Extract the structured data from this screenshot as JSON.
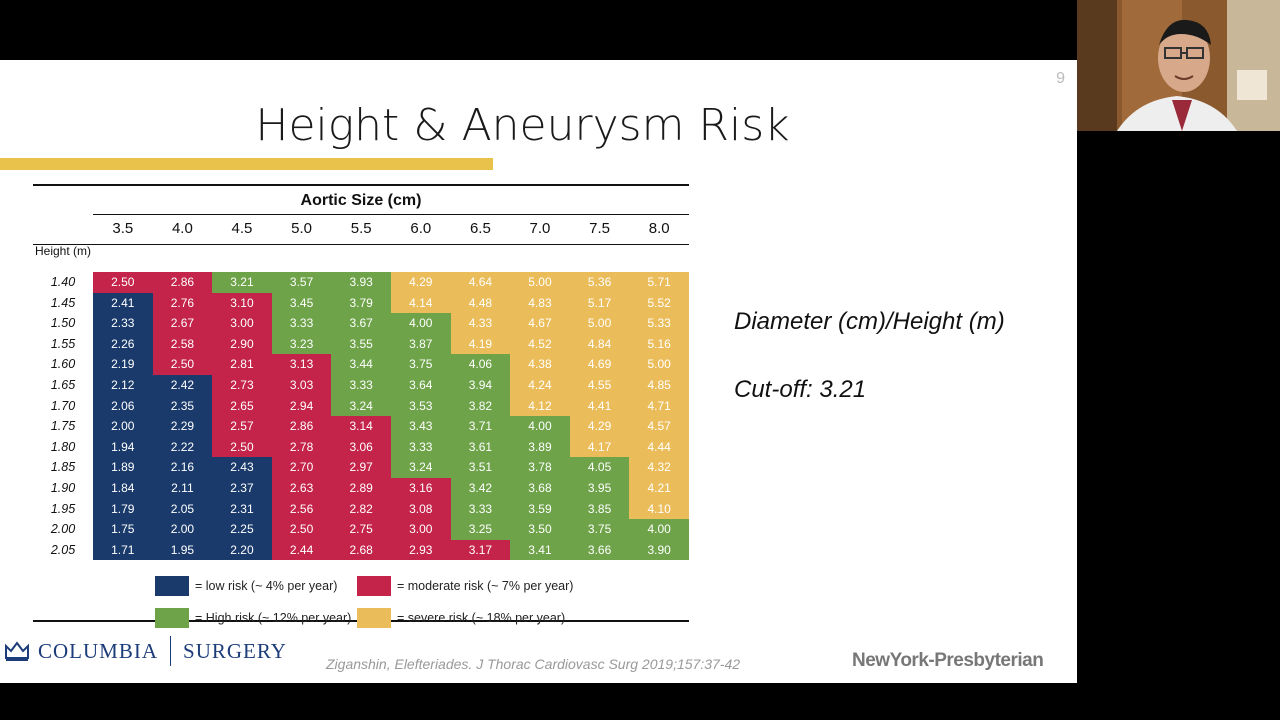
{
  "slide": {
    "number": "9",
    "title": "Height & Aneurysm Risk"
  },
  "table": {
    "header": "Aortic Size (cm)",
    "height_header": "Height (m)",
    "columns": [
      "3.5",
      "4.0",
      "4.5",
      "5.0",
      "5.5",
      "6.0",
      "6.5",
      "7.0",
      "7.5",
      "8.0"
    ],
    "heights": [
      "1.40",
      "1.45",
      "1.50",
      "1.55",
      "1.60",
      "1.65",
      "1.70",
      "1.75",
      "1.80",
      "1.85",
      "1.90",
      "1.95",
      "2.00",
      "2.05"
    ],
    "values": [
      [
        "2.50",
        "2.86",
        "3.21",
        "3.57",
        "3.93",
        "4.29",
        "4.64",
        "5.00",
        "5.36",
        "5.71"
      ],
      [
        "2.41",
        "2.76",
        "3.10",
        "3.45",
        "3.79",
        "4.14",
        "4.48",
        "4.83",
        "5.17",
        "5.52"
      ],
      [
        "2.33",
        "2.67",
        "3.00",
        "3.33",
        "3.67",
        "4.00",
        "4.33",
        "4.67",
        "5.00",
        "5.33"
      ],
      [
        "2.26",
        "2.58",
        "2.90",
        "3.23",
        "3.55",
        "3.87",
        "4.19",
        "4.52",
        "4.84",
        "5.16"
      ],
      [
        "2.19",
        "2.50",
        "2.81",
        "3.13",
        "3.44",
        "3.75",
        "4.06",
        "4.38",
        "4.69",
        "5.00"
      ],
      [
        "2.12",
        "2.42",
        "2.73",
        "3.03",
        "3.33",
        "3.64",
        "3.94",
        "4.24",
        "4.55",
        "4.85"
      ],
      [
        "2.06",
        "2.35",
        "2.65",
        "2.94",
        "3.24",
        "3.53",
        "3.82",
        "4.12",
        "4.41",
        "4.71"
      ],
      [
        "2.00",
        "2.29",
        "2.57",
        "2.86",
        "3.14",
        "3.43",
        "3.71",
        "4.00",
        "4.29",
        "4.57"
      ],
      [
        "1.94",
        "2.22",
        "2.50",
        "2.78",
        "3.06",
        "3.33",
        "3.61",
        "3.89",
        "4.17",
        "4.44"
      ],
      [
        "1.89",
        "2.16",
        "2.43",
        "2.70",
        "2.97",
        "3.24",
        "3.51",
        "3.78",
        "4.05",
        "4.32"
      ],
      [
        "1.84",
        "2.11",
        "2.37",
        "2.63",
        "2.89",
        "3.16",
        "3.42",
        "3.68",
        "3.95",
        "4.21"
      ],
      [
        "1.79",
        "2.05",
        "2.31",
        "2.56",
        "2.82",
        "3.08",
        "3.33",
        "3.59",
        "3.85",
        "4.10"
      ],
      [
        "1.75",
        "2.00",
        "2.25",
        "2.50",
        "2.75",
        "3.00",
        "3.25",
        "3.50",
        "3.75",
        "4.00"
      ],
      [
        "1.71",
        "1.95",
        "2.20",
        "2.44",
        "2.68",
        "2.93",
        "3.17",
        "3.41",
        "3.66",
        "3.90"
      ]
    ],
    "risk": [
      [
        "M",
        "M",
        "H",
        "H",
        "H",
        "S",
        "S",
        "S",
        "S",
        "S"
      ],
      [
        "L",
        "M",
        "M",
        "H",
        "H",
        "S",
        "S",
        "S",
        "S",
        "S"
      ],
      [
        "L",
        "M",
        "M",
        "H",
        "H",
        "H",
        "S",
        "S",
        "S",
        "S"
      ],
      [
        "L",
        "M",
        "M",
        "H",
        "H",
        "H",
        "S",
        "S",
        "S",
        "S"
      ],
      [
        "L",
        "M",
        "M",
        "M",
        "H",
        "H",
        "H",
        "S",
        "S",
        "S"
      ],
      [
        "L",
        "L",
        "M",
        "M",
        "H",
        "H",
        "H",
        "S",
        "S",
        "S"
      ],
      [
        "L",
        "L",
        "M",
        "M",
        "H",
        "H",
        "H",
        "S",
        "S",
        "S"
      ],
      [
        "L",
        "L",
        "M",
        "M",
        "M",
        "H",
        "H",
        "H",
        "S",
        "S"
      ],
      [
        "L",
        "L",
        "M",
        "M",
        "M",
        "H",
        "H",
        "H",
        "S",
        "S"
      ],
      [
        "L",
        "L",
        "L",
        "M",
        "M",
        "H",
        "H",
        "H",
        "H",
        "S"
      ],
      [
        "L",
        "L",
        "L",
        "M",
        "M",
        "M",
        "H",
        "H",
        "H",
        "S"
      ],
      [
        "L",
        "L",
        "L",
        "M",
        "M",
        "M",
        "H",
        "H",
        "H",
        "S"
      ],
      [
        "L",
        "L",
        "L",
        "M",
        "M",
        "M",
        "H",
        "H",
        "H",
        "H"
      ],
      [
        "L",
        "L",
        "L",
        "M",
        "M",
        "M",
        "M",
        "H",
        "H",
        "H"
      ]
    ]
  },
  "colors": {
    "L": "#1a3a6b",
    "M": "#c4234a",
    "H": "#6ea34a",
    "S": "#ebbd5a"
  },
  "legend": {
    "low": "= low risk (~ 4% per year)",
    "moderate": "= moderate risk (~ 7% per year)",
    "high": "= High risk (~ 12% per year)",
    "severe": "= severe risk (~ 18% per year)"
  },
  "notes": {
    "formula": "Diameter (cm)/Height (m)",
    "cutoff": "Cut-off: 3.21"
  },
  "footer": {
    "columbia": "COLUMBIA",
    "surgery": "SURGERY",
    "citation": "Ziganshin, Elefteriades. J Thorac Cardiovasc Surg 2019;157:37-42",
    "nyp": "NewYork-Presbyterian"
  }
}
